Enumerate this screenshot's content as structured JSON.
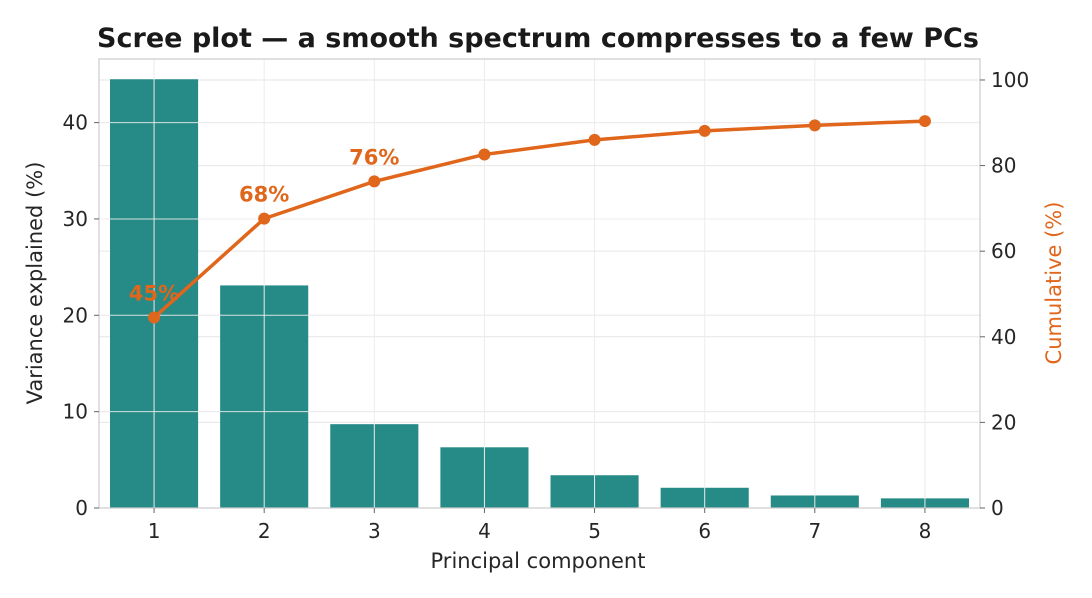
{
  "chart_data": {
    "type": "bar",
    "title": "Scree plot — a smooth spectrum compresses to a few PCs",
    "xlabel": "Principal component",
    "ylabel": "Variance explained (%)",
    "y2label": "Cumulative (%)",
    "categories": [
      "1",
      "2",
      "3",
      "4",
      "5",
      "6",
      "7",
      "8"
    ],
    "bar_series": {
      "values": [
        44.5,
        23.1,
        8.7,
        6.3,
        3.4,
        2.1,
        1.3,
        1.0
      ],
      "color": "#268a87"
    },
    "line_series": {
      "values": [
        44.5,
        67.6,
        76.3,
        82.6,
        86.0,
        88.1,
        89.4,
        90.4
      ],
      "color": "#e0661c",
      "axis": "right"
    },
    "annotations": [
      {
        "index": 0,
        "text": "45%"
      },
      {
        "index": 1,
        "text": "68%"
      },
      {
        "index": 2,
        "text": "76%"
      }
    ],
    "ylim": [
      0,
      46.6
    ],
    "y2lim": [
      0,
      104.9
    ],
    "yticks": [
      "0",
      "10",
      "20",
      "30",
      "40"
    ],
    "y2ticks": [
      "0",
      "20",
      "40",
      "60",
      "80",
      "100"
    ],
    "grid": true,
    "legend": "none"
  }
}
